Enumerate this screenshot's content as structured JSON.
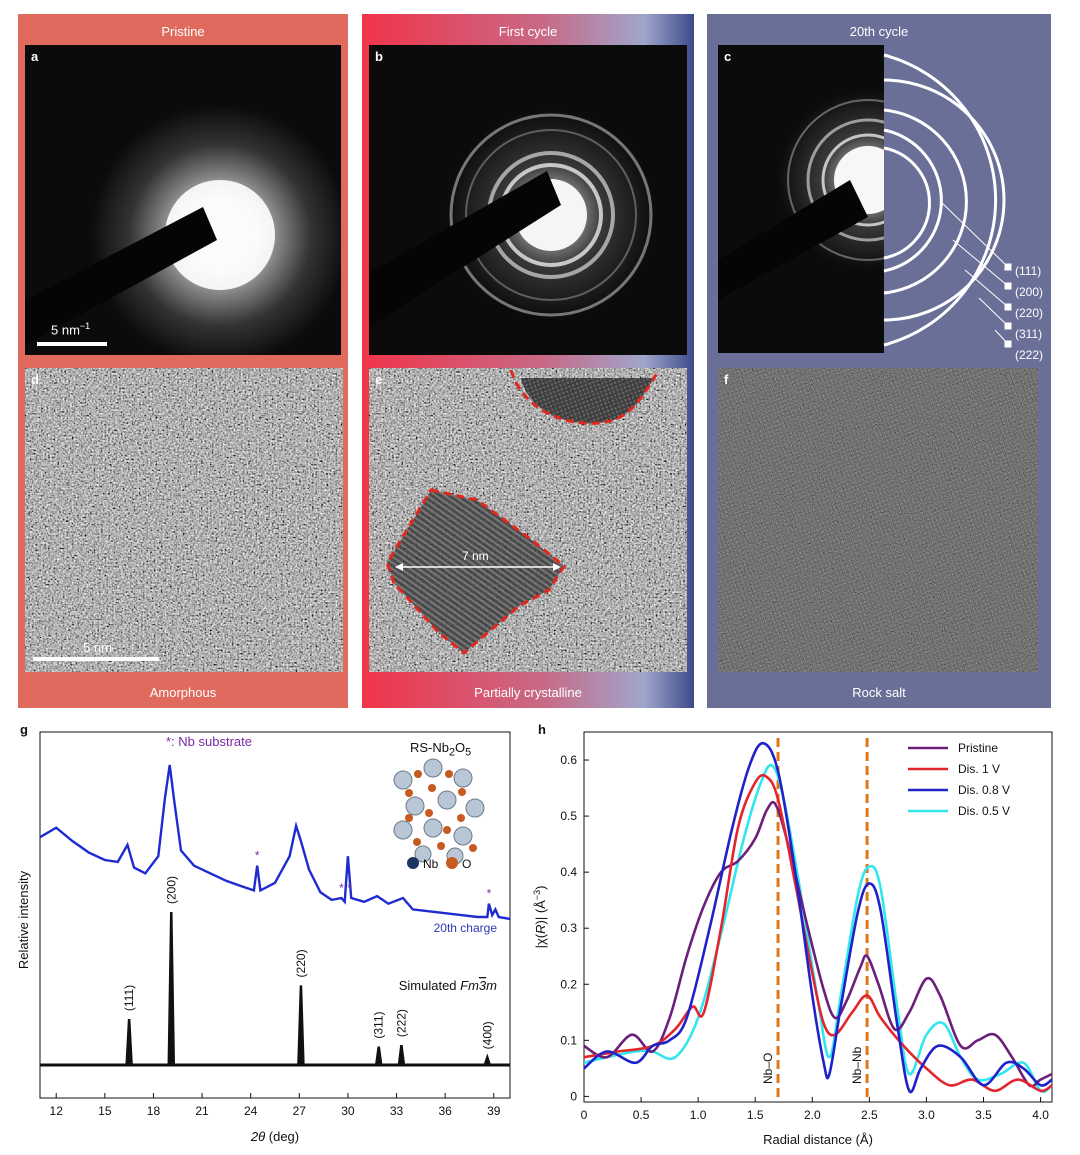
{
  "columns": [
    {
      "title": "Pristine",
      "caption": "Amorphous"
    },
    {
      "title": "First cycle",
      "caption": "Partially crystalline"
    },
    {
      "title": "20th cycle",
      "caption": "Rock salt"
    }
  ],
  "panel_labels": {
    "a": "a",
    "b": "b",
    "c": "c",
    "d": "d",
    "e": "e",
    "f": "f",
    "g": "g",
    "h": "h"
  },
  "scale_bars": {
    "saed": "5 nm",
    "saed_unit_sup": "−1",
    "hrtem": "5 nm"
  },
  "annotation_e": "7 nm",
  "ring_labels": [
    "(111)",
    "(200)",
    "(220)",
    "(311)",
    "(222)"
  ],
  "colors": {
    "pristine_bg": "#e06a5e",
    "cycle20_bg": "#6a6f98",
    "grad_red": "#f0344a",
    "grad_blue": "#3d4a8a"
  },
  "chart_data": [
    {
      "type": "line",
      "panel": "g",
      "xlabel_var": "2θ",
      "xlabel_unit": "(deg)",
      "ylabel": "Relative intensity",
      "xlim": [
        11,
        40
      ],
      "xticks": [
        12,
        15,
        18,
        21,
        24,
        27,
        30,
        33,
        36,
        39
      ],
      "substrate_note": "*: Nb substrate",
      "substrate_peaks_2theta": [
        24.4,
        29.6,
        30.1,
        38.7
      ],
      "structure_label": "RS-Nb2O5",
      "structure_legend": [
        "Nb",
        "O"
      ],
      "series": [
        {
          "name": "20th charge",
          "points": [
            [
              11,
              0.62
            ],
            [
              12,
              0.67
            ],
            [
              13,
              0.6
            ],
            [
              14,
              0.54
            ],
            [
              15,
              0.5
            ],
            [
              15.8,
              0.49
            ],
            [
              16.4,
              0.58
            ],
            [
              16.8,
              0.46
            ],
            [
              17.5,
              0.43
            ],
            [
              18.3,
              0.52
            ],
            [
              18.7,
              0.82
            ],
            [
              19.0,
              1.0
            ],
            [
              19.3,
              0.8
            ],
            [
              19.7,
              0.55
            ],
            [
              20.5,
              0.47
            ],
            [
              21.5,
              0.43
            ],
            [
              22.5,
              0.39
            ],
            [
              23.5,
              0.36
            ],
            [
              24.2,
              0.34
            ],
            [
              24.4,
              0.47
            ],
            [
              24.6,
              0.34
            ],
            [
              25.5,
              0.38
            ],
            [
              26.4,
              0.52
            ],
            [
              26.8,
              0.68
            ],
            [
              27.1,
              0.6
            ],
            [
              27.6,
              0.45
            ],
            [
              28.3,
              0.33
            ],
            [
              29.0,
              0.29
            ],
            [
              29.6,
              0.3
            ],
            [
              29.8,
              0.28
            ],
            [
              30.0,
              0.52
            ],
            [
              30.2,
              0.3
            ],
            [
              31.0,
              0.28
            ],
            [
              31.8,
              0.31
            ],
            [
              32.5,
              0.27
            ],
            [
              33.4,
              0.3
            ],
            [
              34.0,
              0.24
            ],
            [
              35.0,
              0.23
            ],
            [
              36.0,
              0.22
            ],
            [
              37.0,
              0.21
            ],
            [
              38.0,
              0.2
            ],
            [
              38.6,
              0.2
            ],
            [
              38.7,
              0.27
            ],
            [
              38.9,
              0.21
            ],
            [
              39.1,
              0.24
            ],
            [
              39.3,
              0.2
            ],
            [
              40,
              0.19
            ]
          ]
        },
        {
          "name": "Simulated Fm3m",
          "peaks": [
            {
              "x": 16.5,
              "h": 0.3,
              "label": "(111)"
            },
            {
              "x": 19.1,
              "h": 1.0,
              "label": "(200)"
            },
            {
              "x": 27.1,
              "h": 0.52,
              "label": "(220)"
            },
            {
              "x": 31.9,
              "h": 0.12,
              "label": "(311)"
            },
            {
              "x": 33.3,
              "h": 0.13,
              "label": "(222)"
            },
            {
              "x": 38.6,
              "h": 0.05,
              "label": "(400)"
            }
          ]
        }
      ]
    },
    {
      "type": "line",
      "panel": "h",
      "xlabel": "Radial distance (Å)",
      "ylabel_prefix": "|χ(",
      "ylabel_R": "R",
      "ylabel_mid": ")| (Å",
      "ylabel_exp": "−3",
      "ylabel_end": ")",
      "xlim": [
        0,
        4.1
      ],
      "ylim": [
        -0.01,
        0.65
      ],
      "xticks": [
        0,
        0.5,
        1.0,
        1.5,
        2.0,
        2.5,
        3.0,
        3.5,
        4.0
      ],
      "yticks": [
        0,
        0.1,
        0.2,
        0.3,
        0.4,
        0.5,
        0.6
      ],
      "vlines": [
        {
          "x": 1.7,
          "label": "Nb–O"
        },
        {
          "x": 2.48,
          "label": "Nb–Nb"
        }
      ],
      "legend_position": "top-right",
      "series": [
        {
          "name": "Pristine",
          "color": "#6b1f7a",
          "points": [
            [
              0,
              0.09
            ],
            [
              0.2,
              0.07
            ],
            [
              0.42,
              0.11
            ],
            [
              0.6,
              0.08
            ],
            [
              0.75,
              0.14
            ],
            [
              0.9,
              0.25
            ],
            [
              1.05,
              0.34
            ],
            [
              1.2,
              0.4
            ],
            [
              1.35,
              0.42
            ],
            [
              1.5,
              0.46
            ],
            [
              1.6,
              0.51
            ],
            [
              1.68,
              0.52
            ],
            [
              1.8,
              0.44
            ],
            [
              1.95,
              0.31
            ],
            [
              2.1,
              0.19
            ],
            [
              2.2,
              0.14
            ],
            [
              2.3,
              0.17
            ],
            [
              2.42,
              0.23
            ],
            [
              2.48,
              0.25
            ],
            [
              2.58,
              0.2
            ],
            [
              2.72,
              0.12
            ],
            [
              2.85,
              0.15
            ],
            [
              3.0,
              0.21
            ],
            [
              3.12,
              0.18
            ],
            [
              3.3,
              0.09
            ],
            [
              3.45,
              0.1
            ],
            [
              3.6,
              0.11
            ],
            [
              3.75,
              0.07
            ],
            [
              3.9,
              0.02
            ],
            [
              4.0,
              0.03
            ],
            [
              4.1,
              0.04
            ]
          ]
        },
        {
          "name": "Dis. 1 V",
          "color": "#e2262e",
          "points": [
            [
              0,
              0.07
            ],
            [
              0.3,
              0.08
            ],
            [
              0.6,
              0.09
            ],
            [
              0.8,
              0.12
            ],
            [
              0.95,
              0.16
            ],
            [
              1.05,
              0.15
            ],
            [
              1.2,
              0.3
            ],
            [
              1.35,
              0.48
            ],
            [
              1.5,
              0.56
            ],
            [
              1.6,
              0.57
            ],
            [
              1.7,
              0.53
            ],
            [
              1.85,
              0.38
            ],
            [
              2.0,
              0.22
            ],
            [
              2.1,
              0.13
            ],
            [
              2.2,
              0.11
            ],
            [
              2.35,
              0.15
            ],
            [
              2.48,
              0.18
            ],
            [
              2.6,
              0.14
            ],
            [
              2.8,
              0.09
            ],
            [
              3.0,
              0.05
            ],
            [
              3.2,
              0.02
            ],
            [
              3.4,
              0.03
            ],
            [
              3.6,
              0.01
            ],
            [
              3.8,
              0.03
            ],
            [
              4.0,
              0.01
            ],
            [
              4.1,
              0.02
            ]
          ]
        },
        {
          "name": "Dis. 0.8 V",
          "color": "#1f22c9",
          "points": [
            [
              0,
              0.05
            ],
            [
              0.2,
              0.08
            ],
            [
              0.45,
              0.06
            ],
            [
              0.6,
              0.09
            ],
            [
              0.75,
              0.1
            ],
            [
              0.9,
              0.14
            ],
            [
              1.1,
              0.3
            ],
            [
              1.3,
              0.48
            ],
            [
              1.45,
              0.59
            ],
            [
              1.57,
              0.63
            ],
            [
              1.7,
              0.58
            ],
            [
              1.85,
              0.4
            ],
            [
              2.0,
              0.18
            ],
            [
              2.1,
              0.06
            ],
            [
              2.15,
              0.04
            ],
            [
              2.25,
              0.16
            ],
            [
              2.4,
              0.33
            ],
            [
              2.5,
              0.38
            ],
            [
              2.6,
              0.33
            ],
            [
              2.75,
              0.12
            ],
            [
              2.85,
              0.01
            ],
            [
              2.95,
              0.05
            ],
            [
              3.1,
              0.09
            ],
            [
              3.3,
              0.07
            ],
            [
              3.5,
              0.02
            ],
            [
              3.7,
              0.06
            ],
            [
              3.85,
              0.05
            ],
            [
              4.0,
              0.02
            ],
            [
              4.1,
              0.03
            ]
          ]
        },
        {
          "name": "Dis. 0.5 V",
          "color": "#32e6ee",
          "points": [
            [
              0,
              0.06
            ],
            [
              0.2,
              0.07
            ],
            [
              0.45,
              0.08
            ],
            [
              0.6,
              0.08
            ],
            [
              0.8,
              0.07
            ],
            [
              1.0,
              0.14
            ],
            [
              1.2,
              0.29
            ],
            [
              1.4,
              0.46
            ],
            [
              1.55,
              0.56
            ],
            [
              1.65,
              0.59
            ],
            [
              1.75,
              0.53
            ],
            [
              1.9,
              0.36
            ],
            [
              2.05,
              0.17
            ],
            [
              2.15,
              0.07
            ],
            [
              2.25,
              0.18
            ],
            [
              2.4,
              0.36
            ],
            [
              2.5,
              0.41
            ],
            [
              2.6,
              0.37
            ],
            [
              2.75,
              0.15
            ],
            [
              2.85,
              0.04
            ],
            [
              3.0,
              0.11
            ],
            [
              3.15,
              0.13
            ],
            [
              3.3,
              0.07
            ],
            [
              3.45,
              0.03
            ],
            [
              3.65,
              0.04
            ],
            [
              3.85,
              0.06
            ],
            [
              4.0,
              0.01
            ],
            [
              4.1,
              0.02
            ]
          ]
        }
      ]
    }
  ]
}
